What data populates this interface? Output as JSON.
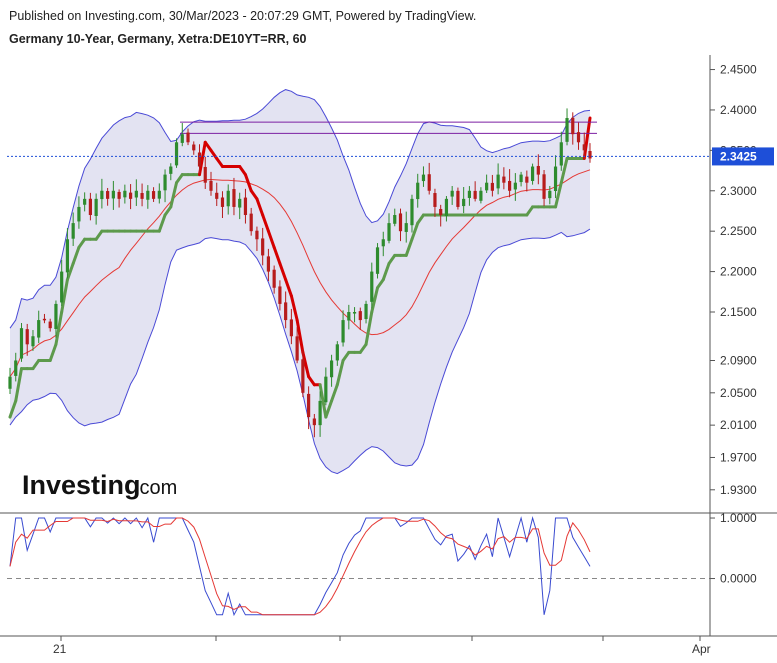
{
  "header": {
    "published": "Published on Investing.com, 30/Mar/2023 - 20:07:29 GMT, Powered by TradingView.",
    "instrument": "Germany 10-Year, Germany, Xetra:DE10YT=RR, 60"
  },
  "logo": {
    "main": "Investing",
    "suffix": ".com"
  },
  "colors": {
    "up": "#2e8b2e",
    "down": "#b71c1c",
    "bb_band": "#4a4ad6",
    "bb_fill": "#e3e3f2",
    "sma": "#e53935",
    "st_green": "#5d9a4c",
    "st_red": "#d50000",
    "resistance": "#7b1fa2",
    "price_line": "#1e4fd8",
    "osc_blue": "#3a4bd0",
    "osc_red": "#e53935"
  },
  "chart_data": [
    {
      "type": "candlestick",
      "title": "Germany 10-Year, Germany, Xetra:DE10YT=RR, 60",
      "y_ticks": [
        "2.4500",
        "2.4000",
        "2.3500",
        "2.3000",
        "2.2500",
        "2.2000",
        "2.1500",
        "2.0900",
        "2.0500",
        "2.0100",
        "1.9700",
        "1.9300"
      ],
      "x_ticks": [
        "21",
        "",
        "",
        "",
        "",
        "Apr"
      ],
      "ylim": [
        1.905,
        2.468
      ],
      "last_price": "2.3425",
      "resistance_levels": [
        2.385,
        2.371
      ],
      "close": [
        2.07,
        2.09,
        2.13,
        2.11,
        2.12,
        2.14,
        2.14,
        2.13,
        2.16,
        2.2,
        2.24,
        2.26,
        2.28,
        2.29,
        2.27,
        2.29,
        2.3,
        2.29,
        2.3,
        2.29,
        2.3,
        2.29,
        2.3,
        2.29,
        2.3,
        2.29,
        2.3,
        2.32,
        2.33,
        2.36,
        2.37,
        2.36,
        2.35,
        2.33,
        2.31,
        2.3,
        2.29,
        2.28,
        2.3,
        2.28,
        2.29,
        2.27,
        2.25,
        2.24,
        2.22,
        2.2,
        2.18,
        2.16,
        2.14,
        2.12,
        2.09,
        2.05,
        2.02,
        2.01,
        2.04,
        2.07,
        2.09,
        2.11,
        2.14,
        2.15,
        2.15,
        2.14,
        2.16,
        2.2,
        2.23,
        2.24,
        2.26,
        2.27,
        2.25,
        2.26,
        2.29,
        2.31,
        2.32,
        2.3,
        2.28,
        2.27,
        2.29,
        2.3,
        2.28,
        2.29,
        2.3,
        2.29,
        2.3,
        2.31,
        2.3,
        2.32,
        2.31,
        2.3,
        2.31,
        2.32,
        2.31,
        2.33,
        2.32,
        2.29,
        2.3,
        2.33,
        2.36,
        2.39,
        2.37,
        2.36,
        2.35,
        2.34
      ]
    },
    {
      "type": "line",
      "name": "oscillator",
      "y_ticks": [
        "1.0000",
        "0.0000"
      ],
      "ylim": [
        -0.95,
        1.05
      ]
    }
  ]
}
